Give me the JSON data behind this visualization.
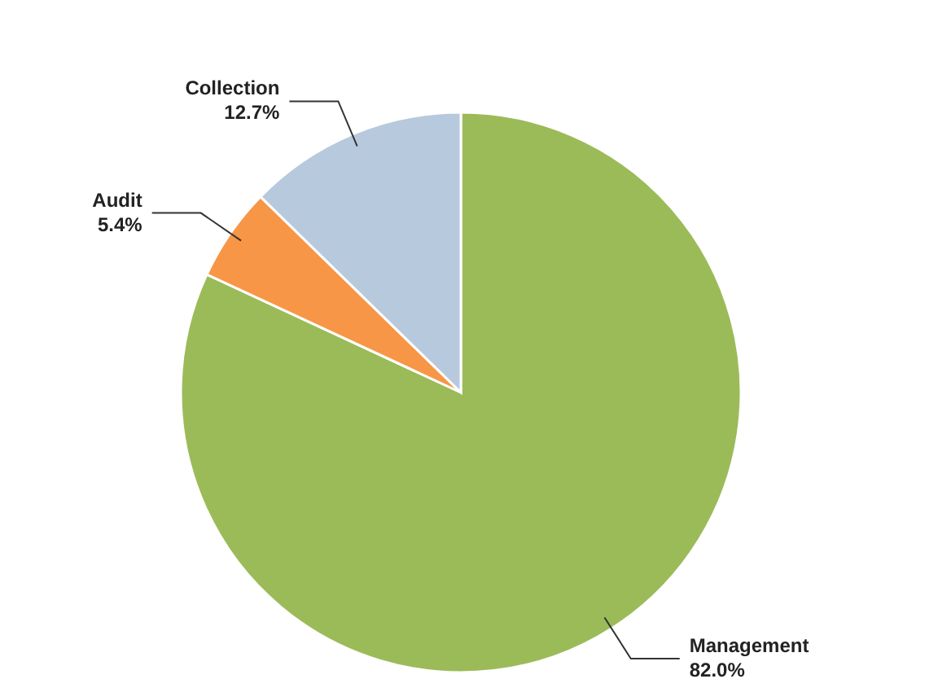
{
  "chart_data": {
    "type": "pie",
    "categories": [
      "Management",
      "Audit",
      "Collection"
    ],
    "values": [
      82.0,
      5.4,
      12.7
    ],
    "colors": [
      "#9bbb59",
      "#f79646",
      "#b7c9dd"
    ],
    "value_labels": [
      "82.0%",
      "5.4%",
      "12.7%"
    ]
  }
}
